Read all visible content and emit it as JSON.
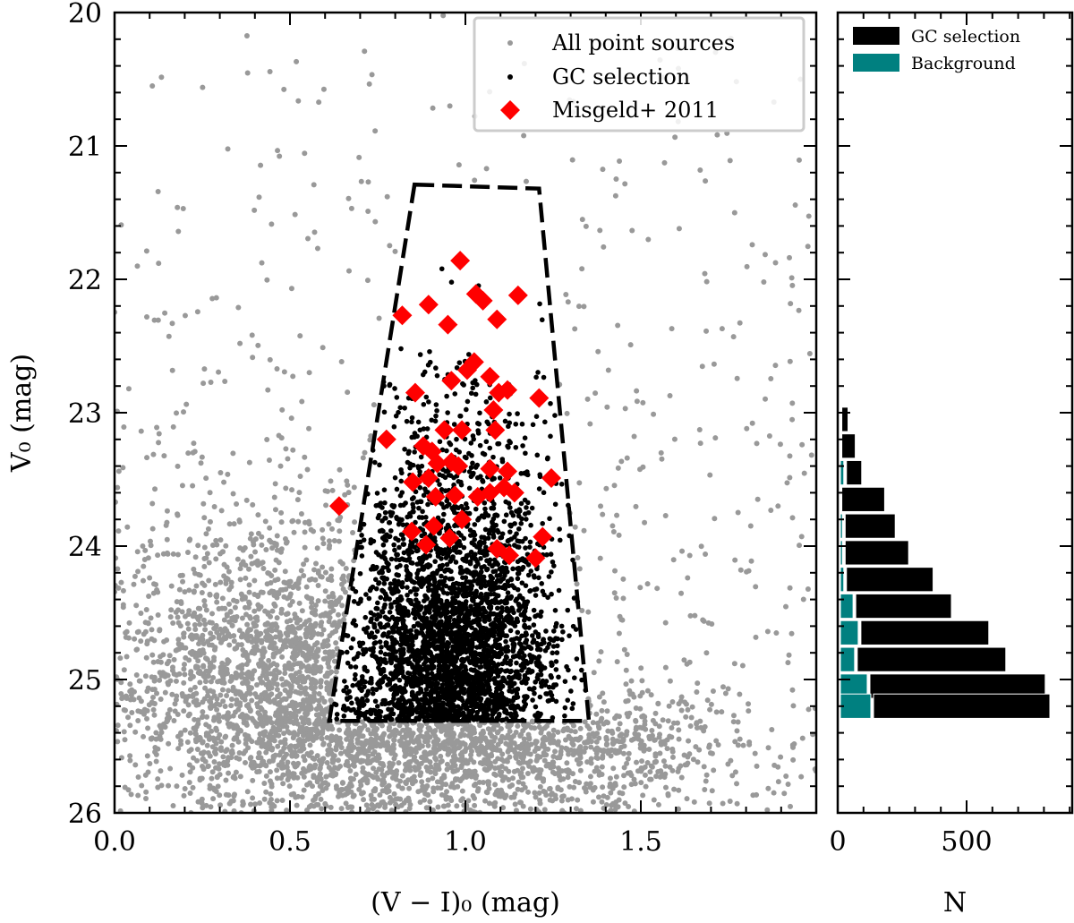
{
  "chart_data": [
    {
      "type": "scatter",
      "xlabel": "(V − I)₀ (mag)",
      "ylabel": "V₀ (mag)",
      "xlim": [
        0.0,
        2.0
      ],
      "ylim": [
        26,
        20
      ],
      "y_inverted": true,
      "xticks": [
        "0.0",
        "0.5",
        "1.0",
        "1.5"
      ],
      "yticks": [
        "20",
        "21",
        "22",
        "23",
        "24",
        "25",
        "26"
      ],
      "grid": false,
      "legend_placement": "top-right",
      "legend": [
        "All point sources",
        "GC selection",
        "Misgeld+ 2011"
      ],
      "colors": {
        "all": "#999999",
        "gc": "#000000",
        "misgeld": "#ff0000"
      },
      "selection_polygon": [
        [
          0.855,
          21.29
        ],
        [
          1.21,
          21.32
        ],
        [
          1.352,
          25.31
        ],
        [
          0.612,
          25.31
        ]
      ],
      "misgeld_2011": [
        [
          0.985,
          21.86
        ],
        [
          0.82,
          22.27
        ],
        [
          0.895,
          22.19
        ],
        [
          1.03,
          22.11
        ],
        [
          1.05,
          22.16
        ],
        [
          1.15,
          22.12
        ],
        [
          0.95,
          22.34
        ],
        [
          1.09,
          22.3
        ],
        [
          1.025,
          22.62
        ],
        [
          1.005,
          22.68
        ],
        [
          0.857,
          22.85
        ],
        [
          0.96,
          22.76
        ],
        [
          1.07,
          22.73
        ],
        [
          1.095,
          22.85
        ],
        [
          1.12,
          22.83
        ],
        [
          1.21,
          22.89
        ],
        [
          1.08,
          22.98
        ],
        [
          1.085,
          23.13
        ],
        [
          0.775,
          23.2
        ],
        [
          0.94,
          23.13
        ],
        [
          0.99,
          23.13
        ],
        [
          0.88,
          23.25
        ],
        [
          0.905,
          23.29
        ],
        [
          0.92,
          23.38
        ],
        [
          0.96,
          23.37
        ],
        [
          0.98,
          23.4
        ],
        [
          0.85,
          23.52
        ],
        [
          0.895,
          23.49
        ],
        [
          1.07,
          23.42
        ],
        [
          1.12,
          23.44
        ],
        [
          1.245,
          23.49
        ],
        [
          0.915,
          23.63
        ],
        [
          0.97,
          23.62
        ],
        [
          1.035,
          23.63
        ],
        [
          1.07,
          23.6
        ],
        [
          1.11,
          23.56
        ],
        [
          1.14,
          23.6
        ],
        [
          0.64,
          23.7
        ],
        [
          0.99,
          23.8
        ],
        [
          0.847,
          23.89
        ],
        [
          0.91,
          23.85
        ],
        [
          0.955,
          23.94
        ],
        [
          0.888,
          23.99
        ],
        [
          1.09,
          24.02
        ],
        [
          1.125,
          24.07
        ],
        [
          1.22,
          23.93
        ],
        [
          1.2,
          24.09
        ]
      ]
    },
    {
      "type": "bar",
      "orientation": "horizontal",
      "stacked": true,
      "xlabel": "N",
      "xticks": [
        "0",
        "500"
      ],
      "xlim": [
        0,
        910
      ],
      "legend_placement": "top-left",
      "bin_centers": [
        22.85,
        23.05,
        23.25,
        23.45,
        23.65,
        23.85,
        24.05,
        24.25,
        24.45,
        24.65,
        24.85,
        25.05,
        25.2
      ],
      "bin_width": 0.196,
      "series": [
        {
          "name": "Background",
          "color": "#008080",
          "values": [
            2,
            2,
            2,
            20,
            2,
            15,
            15,
            20,
            56,
            76,
            62,
            111,
            125
          ]
        },
        {
          "name": "GC selection",
          "color": "#000000",
          "values": [
            14,
            38,
            66,
            73,
            180,
            208,
            260,
            350,
            385,
            510,
            590,
            694,
            698
          ]
        }
      ]
    }
  ]
}
